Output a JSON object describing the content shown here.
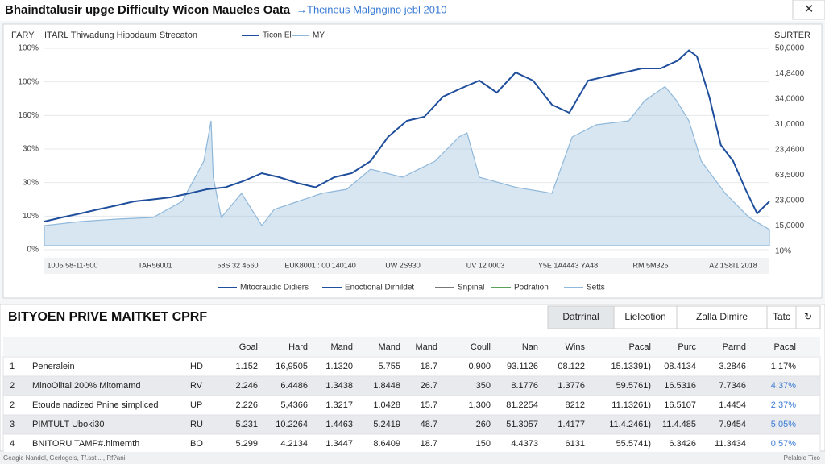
{
  "window": {
    "title": "Bhaindtalusir upge Difficulty Wicon Maueles Oata",
    "subtitle": "→Theineus Malgngino jebl 2010",
    "close": "✕"
  },
  "chart": {
    "left_corner": "FARY",
    "right_corner": "SURTER",
    "caption": "ITARL Thiwadung Hipodaum Strecaton",
    "xlim": [
      0,
      100
    ],
    "ylim": [
      0,
      100
    ],
    "left_axis_labels": [
      "100%",
      "100%",
      "160%",
      "30%",
      "30%",
      "10%",
      "0%"
    ],
    "right_axis_labels": [
      "50,0000",
      "14,8400",
      "34,0000",
      "31,0000",
      "23,4600",
      "63,5000",
      "23,0000",
      "15,0000",
      "10%"
    ],
    "x_labels": [
      "1005 58-11-500",
      "TAR56001",
      "58S 32 4560",
      "EUK8001 : 00 140140",
      "UW 2S930",
      "UV 12 0003",
      "Y5E 1A4443 YA48",
      "RM 5M325",
      "A2 1S8I1 2018"
    ],
    "series": [
      {
        "name": "Ticon El",
        "color": "#1f4e9c",
        "x": [
          0,
          2.4,
          5,
          7.4,
          10,
          12.4,
          15,
          17.4,
          20,
          22.4,
          25,
          27.4,
          30,
          32.4,
          35,
          37.4,
          40,
          42.4,
          45,
          47.4,
          50,
          52.4,
          55,
          57.4,
          60,
          62.4,
          65,
          67.4,
          70,
          72.4,
          75,
          77.4,
          80,
          82.4,
          85,
          87.4,
          88.9,
          90,
          91.7,
          93.3,
          95,
          96.7,
          98.3,
          100
        ],
        "values": [
          12,
          14,
          16,
          18,
          20,
          22,
          23,
          24,
          26,
          28,
          29,
          32,
          36,
          34,
          31,
          29,
          34,
          36,
          42,
          54,
          62,
          64,
          74,
          78,
          82,
          76,
          86,
          82,
          70,
          66,
          82,
          84,
          86,
          88,
          88,
          92,
          97,
          94,
          74,
          50,
          42,
          28,
          16,
          22
        ]
      },
      {
        "name": "MY",
        "color": "#8fb8da",
        "x": [
          0,
          5,
          10,
          15,
          19,
          22,
          23,
          23.3,
          24.4,
          27.2,
          30,
          31.7,
          35,
          38.3,
          41.7,
          45,
          49.4,
          53.9,
          57.2,
          58.3,
          60,
          65,
          70,
          72.8,
          76.1,
          80.6,
          82.8,
          85.6,
          87.2,
          88.9,
          90.6,
          93.9,
          97.2,
          100
        ],
        "values": [
          10,
          12,
          13.2,
          14,
          22,
          42,
          62,
          34,
          14,
          26,
          10,
          18,
          22,
          26,
          28,
          38,
          34,
          42,
          54,
          56,
          34,
          29,
          26,
          54,
          60,
          62,
          72,
          79,
          72,
          62,
          42,
          26,
          14,
          8
        ]
      }
    ],
    "bottom_legend": [
      "Mitocraudic Didiers",
      "Enoctional Dirhildet",
      "Snpinal",
      "Podration",
      "Setts"
    ]
  },
  "table": {
    "title": "BITYOEN PRIVE MAITKET CPRF",
    "tabs": [
      "Datrrinal",
      "Lieleotion",
      "Zalla Dimire",
      "Tatc",
      "↻"
    ],
    "header": [
      "Goal",
      "Hard",
      "Mand",
      "Mand",
      "Mand",
      "Coull",
      "Nan",
      "Wins",
      "Pacal",
      "Purc",
      "Parnd",
      "Pacal"
    ],
    "rows": [
      [
        "1",
        "Peneralein",
        "HD",
        "1.152",
        "16,9505",
        "1.1320",
        "5.755",
        "18.7",
        "0.900",
        "93.1126",
        "08.122",
        "15.13391)",
        "08.4134",
        "3.2846",
        "1.17%"
      ],
      [
        "2",
        "MinoOlital 200% Mitomamd",
        "RV",
        "2.246",
        "6.4486",
        "1.3438",
        "1.8448",
        "26.7",
        "350",
        "8.1776",
        "1.3776",
        "59.5761)",
        "16.5316",
        "7.7346",
        "4.37%"
      ],
      [
        "2",
        "Etoude nadized Pnine simpliced",
        "UP",
        "2.226",
        "5,4366",
        "1.3217",
        "1.0428",
        "15.7",
        "1,300",
        "81.2254",
        "8212",
        "11.13261)",
        "16.5107",
        "1.4454",
        "2.37%"
      ],
      [
        "3",
        "PIMTULT Uboki30",
        "RU",
        "5.231",
        "10.2264",
        "1.4463",
        "5.2419",
        "48.7",
        "260",
        "51.3057",
        "1.4177",
        "11.4.2461)",
        "11.4.485",
        "7.9454",
        "5.05%"
      ],
      [
        "4",
        "BNITORU TAMP#.himemth",
        "BO",
        "5.299",
        "4.2134",
        "1.3447",
        "8.6409",
        "18.7",
        "150",
        "4.4373",
        "6131",
        "55.5741)",
        "6.3426",
        "11.3434",
        "0.57%"
      ]
    ]
  },
  "footer": {
    "left": "Geagic Nandol, Gerlogels, Tf.sstl..., Rf?anil",
    "right": "Pelalole Tico"
  }
}
